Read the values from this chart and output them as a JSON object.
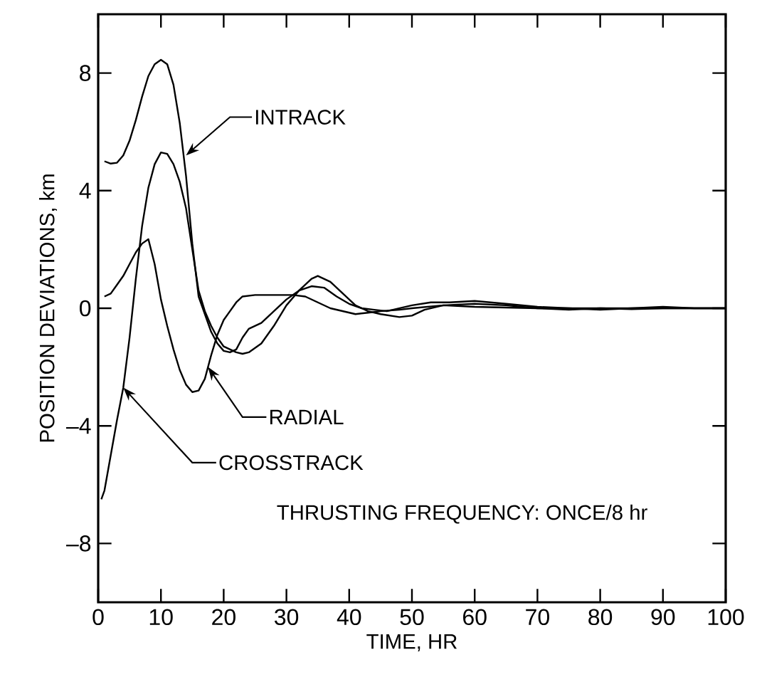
{
  "chart_data": {
    "type": "line",
    "xlabel": "TIME, HR",
    "ylabel": "POSITION DEVIATIONS, km",
    "xlim": [
      0,
      100
    ],
    "xticks": [
      0,
      10,
      20,
      30,
      40,
      50,
      60,
      70,
      80,
      90,
      100
    ],
    "ylim": [
      -10,
      10
    ],
    "yticks": [
      {
        "value": -8,
        "label": "–8"
      },
      {
        "value": -4,
        "label": "–4"
      },
      0,
      4,
      8
    ],
    "marker": "none",
    "line_style": "solid",
    "series": [
      {
        "color": "#000000",
        "x": [
          1,
          2,
          3,
          4,
          5,
          6,
          7,
          8,
          9,
          10,
          11,
          12,
          13,
          14,
          15,
          16,
          17,
          18,
          19,
          20,
          21,
          22,
          23,
          24,
          26,
          28,
          30,
          32,
          34,
          36,
          38,
          40,
          42,
          44,
          46,
          48,
          50,
          53,
          56,
          60,
          65,
          70,
          75,
          80,
          85,
          90,
          95,
          100
        ],
        "values": [
          5.0,
          4.92,
          4.95,
          5.2,
          5.7,
          6.4,
          7.2,
          7.9,
          8.3,
          8.45,
          8.3,
          7.6,
          6.3,
          4.5,
          2.2,
          0.4,
          -0.2,
          -0.8,
          -1.2,
          -1.45,
          -1.5,
          -1.4,
          -1.0,
          -0.7,
          -0.5,
          -0.1,
          0.3,
          0.6,
          0.75,
          0.7,
          0.4,
          0.15,
          0.0,
          -0.05,
          -0.1,
          0.0,
          0.1,
          0.2,
          0.2,
          0.25,
          0.15,
          0.05,
          0.0,
          -0.05,
          0.0,
          0.05,
          0.0,
          0.0
        ]
      },
      {
        "color": "#000000",
        "x": [
          0.5,
          1,
          2,
          3,
          4,
          5,
          6,
          7,
          8,
          9,
          10,
          11,
          12,
          13,
          14,
          15,
          16,
          17,
          18,
          19,
          20,
          22,
          23,
          24,
          26,
          28,
          30,
          32,
          34,
          35,
          37,
          39,
          41,
          43,
          45,
          48,
          50,
          52,
          55,
          60,
          65,
          70,
          75,
          80,
          85,
          90,
          100
        ],
        "values": [
          -6.5,
          -6.2,
          -5.0,
          -3.8,
          -2.7,
          -1.0,
          1.0,
          2.8,
          4.1,
          4.9,
          5.3,
          5.25,
          4.9,
          4.3,
          3.4,
          2.0,
          0.6,
          -0.1,
          -0.6,
          -1.0,
          -1.3,
          -1.5,
          -1.55,
          -1.5,
          -1.2,
          -0.6,
          0.1,
          0.6,
          1.0,
          1.1,
          0.9,
          0.5,
          0.1,
          -0.1,
          -0.2,
          -0.3,
          -0.25,
          -0.05,
          0.1,
          0.15,
          0.1,
          0.0,
          -0.05,
          0.0,
          -0.03,
          0.0,
          0.0
        ]
      },
      {
        "color": "#000000",
        "x": [
          1,
          2,
          3,
          4,
          5,
          6,
          7,
          8,
          9,
          10,
          11,
          12,
          13,
          14,
          15,
          16,
          17,
          18,
          19,
          20,
          21,
          22,
          23,
          25,
          28,
          31,
          33,
          35,
          37,
          39,
          41,
          43,
          45,
          48,
          50,
          55,
          60,
          70,
          80,
          90,
          100
        ],
        "values": [
          0.4,
          0.5,
          0.8,
          1.1,
          1.5,
          1.9,
          2.2,
          2.35,
          1.5,
          0.3,
          -0.6,
          -1.4,
          -2.1,
          -2.6,
          -2.85,
          -2.8,
          -2.4,
          -1.6,
          -0.9,
          -0.4,
          -0.1,
          0.2,
          0.4,
          0.45,
          0.45,
          0.45,
          0.4,
          0.2,
          0.0,
          -0.1,
          -0.2,
          -0.15,
          -0.1,
          -0.05,
          0.0,
          0.1,
          0.05,
          0.0,
          0.0,
          0.0,
          0.0
        ]
      }
    ],
    "annotations": [
      {
        "text": "INTRACK",
        "x": 14,
        "y": 5.2
      },
      {
        "text": "RADIAL",
        "x": 17.5,
        "y": -2.0
      },
      {
        "text": "CROSSTRACK",
        "x": 4,
        "y": -2.7
      },
      "THRUSTING FREQUENCY:  ONCE/8 hr"
    ]
  }
}
